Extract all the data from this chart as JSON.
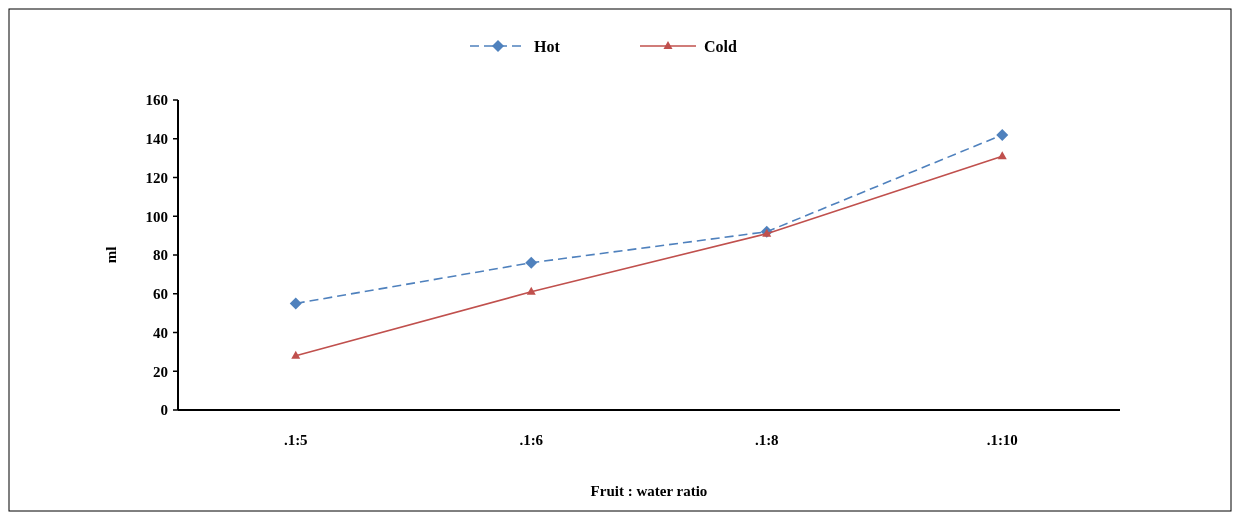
{
  "chart_data": {
    "type": "line",
    "xlabel": "Fruit : water ratio",
    "ylabel": "ml",
    "categories": [
      ".1:5",
      ".1:6",
      ".1:8",
      ".1:10"
    ],
    "series": [
      {
        "name": "Hot",
        "color": "#4f81bd",
        "values": [
          55,
          76,
          92,
          142
        ],
        "marker": "diamond",
        "line_style": "dashed"
      },
      {
        "name": "Cold",
        "color": "#c0504d",
        "values": [
          28,
          61,
          91,
          131
        ],
        "marker": "triangle",
        "line_style": "solid"
      }
    ],
    "ylim": [
      0,
      160
    ],
    "yticks": [
      0,
      20,
      40,
      60,
      80,
      100,
      120,
      140,
      160
    ],
    "grid": false,
    "legend": "top"
  }
}
